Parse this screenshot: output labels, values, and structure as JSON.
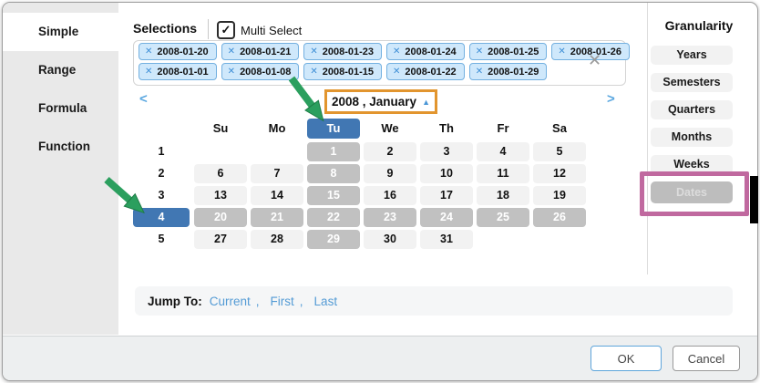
{
  "colors": {
    "accent_blue": "#4177b3",
    "selected_gray": "#c1c1c1",
    "chip_bg": "#cfe8fb",
    "chip_border": "#73b0e0",
    "link_blue": "#549bd5",
    "annotation_orange": "#e2952e",
    "annotation_pink": "#c0699f",
    "annotation_green": "#2b9f5e"
  },
  "tabs": [
    {
      "label": "Simple",
      "selected": true
    },
    {
      "label": "Range",
      "selected": false
    },
    {
      "label": "Formula",
      "selected": false
    },
    {
      "label": "Function",
      "selected": false
    }
  ],
  "selections": {
    "label": "Selections",
    "multi_select": {
      "label": "Multi Select",
      "checked": true,
      "check_icon": "✓"
    },
    "chip_rows": [
      [
        "2008-01-20",
        "2008-01-21",
        "2008-01-23",
        "2008-01-24",
        "2008-01-25",
        "2008-01-26"
      ],
      [
        "2008-01-01",
        "2008-01-08",
        "2008-01-15",
        "2008-01-22",
        "2008-01-29"
      ]
    ],
    "remove_icon": "✕",
    "clear_all_icon": "✕"
  },
  "calendar": {
    "title": "2008 , January",
    "collapse_icon": "▲",
    "prev_icon": "<",
    "next_icon": ">",
    "day_headers": [
      "Su",
      "Mo",
      "Tu",
      "We",
      "Th",
      "Fr",
      "Sa"
    ],
    "selected_day_header": "Tu",
    "selected_week": "4",
    "selected_days": [
      "1",
      "8",
      "15",
      "20",
      "21",
      "22",
      "23",
      "24",
      "25",
      "26",
      "29"
    ],
    "weeks": [
      {
        "week": "1",
        "days": [
          "",
          "",
          "1",
          "2",
          "3",
          "4",
          "5"
        ]
      },
      {
        "week": "2",
        "days": [
          "6",
          "7",
          "8",
          "9",
          "10",
          "11",
          "12"
        ]
      },
      {
        "week": "3",
        "days": [
          "13",
          "14",
          "15",
          "16",
          "17",
          "18",
          "19"
        ]
      },
      {
        "week": "4",
        "days": [
          "20",
          "21",
          "22",
          "23",
          "24",
          "25",
          "26"
        ]
      },
      {
        "week": "5",
        "days": [
          "27",
          "28",
          "29",
          "30",
          "31",
          "",
          ""
        ]
      }
    ]
  },
  "jump_to": {
    "label": "Jump To:",
    "links": [
      "Current",
      "First",
      "Last"
    ],
    "separator": ","
  },
  "granularity": {
    "title": "Granularity",
    "items": [
      {
        "label": "Years",
        "selected": false
      },
      {
        "label": "Semesters",
        "selected": false
      },
      {
        "label": "Quarters",
        "selected": false
      },
      {
        "label": "Months",
        "selected": false
      },
      {
        "label": "Weeks",
        "selected": false
      },
      {
        "label": "Dates",
        "selected": true
      }
    ]
  },
  "footer": {
    "ok_label": "OK",
    "cancel_label": "Cancel"
  }
}
